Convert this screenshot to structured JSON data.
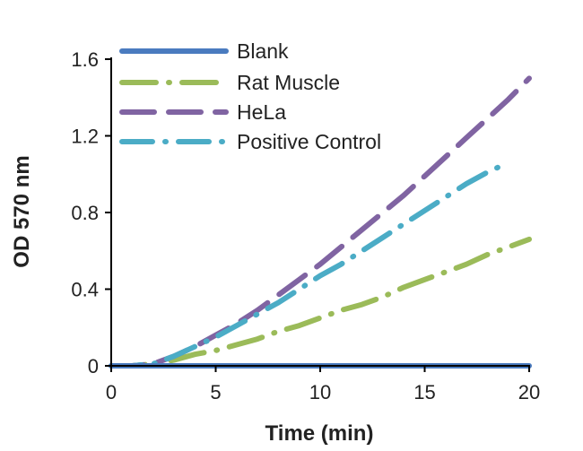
{
  "chart_data": {
    "type": "line",
    "title": "",
    "xlabel": "Time (min)",
    "ylabel": "OD 570 nm",
    "xlim": [
      0,
      20
    ],
    "ylim": [
      0,
      1.6
    ],
    "xticks": [
      0,
      5,
      10,
      15,
      20
    ],
    "yticks": [
      0,
      0.4,
      0.8,
      1.2,
      1.6
    ],
    "xtick_labels": [
      "0",
      "5",
      "10",
      "15",
      "20"
    ],
    "ytick_labels": [
      "0",
      "0.4",
      "0.8",
      "1.2",
      "1.6"
    ],
    "grid": false,
    "legend_position": "top-right",
    "series": [
      {
        "name": "Blank",
        "color": "#4a7bbf",
        "style": "solid",
        "x": [
          0,
          20
        ],
        "y": [
          0,
          0
        ]
      },
      {
        "name": "Rat Muscle",
        "color": "#9bbb59",
        "style": "long-dash-dot",
        "x": [
          0,
          1,
          2,
          3,
          4,
          5,
          6,
          7,
          8,
          9,
          10,
          11,
          12,
          13,
          14,
          15,
          16,
          17,
          18,
          19,
          20
        ],
        "y": [
          0,
          0,
          0.01,
          0.03,
          0.06,
          0.08,
          0.11,
          0.14,
          0.18,
          0.21,
          0.25,
          0.29,
          0.32,
          0.36,
          0.41,
          0.45,
          0.49,
          0.53,
          0.58,
          0.62,
          0.66
        ]
      },
      {
        "name": "HeLa",
        "color": "#8064a2",
        "style": "dashed",
        "x": [
          0,
          1,
          2,
          3,
          4,
          5,
          6,
          7,
          8,
          9,
          10,
          11,
          12,
          13,
          14,
          15,
          16,
          17,
          18,
          19,
          20
        ],
        "y": [
          0,
          0,
          0.01,
          0.05,
          0.1,
          0.16,
          0.22,
          0.29,
          0.37,
          0.45,
          0.53,
          0.62,
          0.71,
          0.8,
          0.89,
          0.99,
          1.09,
          1.19,
          1.29,
          1.39,
          1.5
        ]
      },
      {
        "name": "Positive Control",
        "color": "#4bacc6",
        "style": "dash-dot",
        "x": [
          0,
          1,
          2,
          3,
          4,
          5,
          6,
          7,
          8,
          9,
          10,
          11,
          12,
          13,
          14,
          15,
          16,
          17,
          18,
          19
        ],
        "y": [
          0,
          0,
          0.01,
          0.05,
          0.1,
          0.15,
          0.21,
          0.27,
          0.33,
          0.4,
          0.47,
          0.53,
          0.6,
          0.67,
          0.74,
          0.81,
          0.88,
          0.95,
          1.01,
          1.06
        ]
      }
    ]
  }
}
